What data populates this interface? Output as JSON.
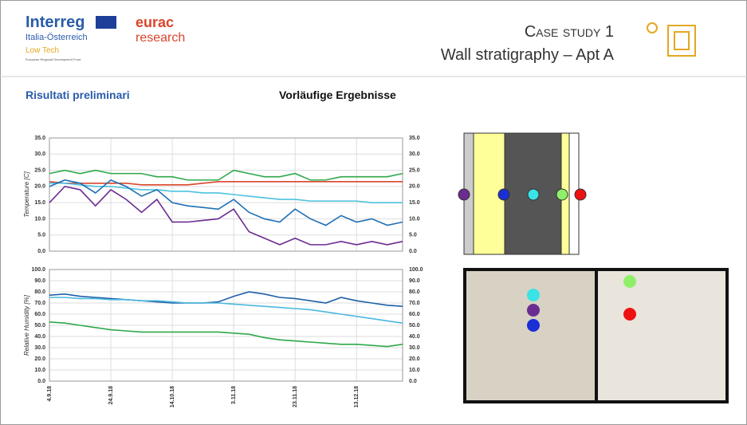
{
  "header": {
    "logo_main": "Interreg",
    "logo_region": "Italia-Österreich",
    "logo_sub": "Low Tech",
    "logo_fund": "European Regional Development Fund",
    "eurac_1": "eurac",
    "eurac_2": "research",
    "title_1": "Case study 1",
    "title_2": "Wall stratigraphy – Apt A"
  },
  "section": {
    "left": "Risultati preliminari",
    "center": "Vorläufige Ergebnisse"
  },
  "chart_data": [
    {
      "type": "line",
      "y_label": "Temperature [C]",
      "x": [
        "2018-09-04",
        "2018-09-09",
        "2018-09-14",
        "2018-09-19",
        "2018-09-24",
        "2018-09-29",
        "2018-10-04",
        "2018-10-09",
        "2018-10-14",
        "2018-10-19",
        "2018-10-24",
        "2018-10-29",
        "2018-11-03",
        "2018-11-08",
        "2018-11-13",
        "2018-11-18",
        "2018-11-23",
        "2018-11-28",
        "2018-12-03",
        "2018-12-08",
        "2018-12-13",
        "2018-12-18",
        "2018-12-23",
        "2018-12-28"
      ],
      "xlim": [
        "2018-09-04",
        "2018-12-28"
      ],
      "xticks": [
        {
          "value": "2018-09-04",
          "label": "4.9.18"
        },
        {
          "value": "2018-09-24",
          "label": "24.9.18"
        },
        {
          "value": "2018-10-14",
          "label": "14.10.18"
        },
        {
          "value": "2018-11-03",
          "label": "3.11.18"
        },
        {
          "value": "2018-11-23",
          "label": "23.11.18"
        },
        {
          "value": "2018-12-13",
          "label": "13.12.18"
        }
      ],
      "ylim": [
        0,
        35
      ],
      "yticks": [
        {
          "value": 0,
          "label": "0.0"
        },
        {
          "value": 5,
          "label": "5.0"
        },
        {
          "value": 10,
          "label": "10.0"
        },
        {
          "value": 15,
          "label": "15.0"
        },
        {
          "value": 20,
          "label": "20.0"
        },
        {
          "value": 25,
          "label": "25.0"
        },
        {
          "value": 30,
          "label": "30.0"
        },
        {
          "value": 35,
          "label": "35.0"
        }
      ],
      "y2lim": [
        0,
        35
      ],
      "y2ticks": [
        {
          "value": 0,
          "label": "0.0"
        },
        {
          "value": 5,
          "label": "5.0"
        },
        {
          "value": 10,
          "label": "10.0"
        },
        {
          "value": 15,
          "label": "15.0"
        },
        {
          "value": 20,
          "label": "20.0"
        },
        {
          "value": 25,
          "label": "25.0"
        },
        {
          "value": 30,
          "label": "30.0"
        },
        {
          "value": 35,
          "label": "35.0"
        }
      ],
      "grid": true,
      "series": [
        {
          "color": "#d9452b",
          "values": [
            21.5,
            21,
            21,
            21,
            21,
            21,
            20.5,
            20.5,
            20.5,
            20.5,
            21,
            21.5,
            21.5,
            21.5,
            21.5,
            21.5,
            21.5,
            21.5,
            21.5,
            21.5,
            21.5,
            21.5,
            21.5,
            21.5
          ]
        },
        {
          "color": "#2ea84a",
          "values": [
            24,
            25,
            24,
            25,
            24,
            24,
            24,
            23,
            23,
            22,
            22,
            22,
            25,
            24,
            23,
            23,
            24,
            22,
            22,
            23,
            23,
            23,
            23,
            24
          ]
        },
        {
          "color": "#4cc3df",
          "values": [
            21,
            21,
            20.5,
            20,
            20,
            19.5,
            19,
            19,
            18.5,
            18.5,
            18,
            18,
            17.5,
            17,
            16.5,
            16,
            16,
            15.5,
            15.5,
            15.5,
            15.5,
            15,
            15,
            15
          ]
        },
        {
          "color": "#1f6fb5",
          "values": [
            20,
            22,
            21,
            18,
            22,
            20,
            17,
            19,
            15,
            14,
            13.5,
            13,
            16,
            12,
            10,
            9,
            13,
            10,
            8,
            11,
            9,
            10,
            8,
            9
          ]
        },
        {
          "color": "#6b2c91",
          "values": [
            15,
            20,
            19,
            14,
            19,
            16,
            12,
            16,
            9,
            9,
            9.5,
            10,
            13,
            6,
            4,
            2,
            4,
            2,
            2,
            3,
            2,
            3,
            2,
            3
          ]
        }
      ]
    },
    {
      "type": "line",
      "y_label": "Relative Humidity [%]",
      "x": [
        "2018-09-04",
        "2018-09-09",
        "2018-09-14",
        "2018-09-19",
        "2018-09-24",
        "2018-09-29",
        "2018-10-04",
        "2018-10-09",
        "2018-10-14",
        "2018-10-19",
        "2018-10-24",
        "2018-10-29",
        "2018-11-03",
        "2018-11-08",
        "2018-11-13",
        "2018-11-18",
        "2018-11-23",
        "2018-11-28",
        "2018-12-03",
        "2018-12-08",
        "2018-12-13",
        "2018-12-18",
        "2018-12-23",
        "2018-12-28"
      ],
      "xlim": [
        "2018-09-04",
        "2018-12-28"
      ],
      "xticks": [
        {
          "value": "2018-09-04",
          "label": "4.9.18"
        },
        {
          "value": "2018-09-24",
          "label": "24.9.18"
        },
        {
          "value": "2018-10-14",
          "label": "14.10.18"
        },
        {
          "value": "2018-11-03",
          "label": "3.11.18"
        },
        {
          "value": "2018-11-23",
          "label": "23.11.18"
        },
        {
          "value": "2018-12-13",
          "label": "13.12.18"
        }
      ],
      "ylim": [
        0,
        100
      ],
      "yticks": [
        {
          "value": 0,
          "label": "0.0"
        },
        {
          "value": 10,
          "label": "10.0"
        },
        {
          "value": 20,
          "label": "20.0"
        },
        {
          "value": 30,
          "label": "30.0"
        },
        {
          "value": 40,
          "label": "40.0"
        },
        {
          "value": 50,
          "label": "50.0"
        },
        {
          "value": 60,
          "label": "60.0"
        },
        {
          "value": 70,
          "label": "70.0"
        },
        {
          "value": 80,
          "label": "80.0"
        },
        {
          "value": 90,
          "label": "90.0"
        },
        {
          "value": 100,
          "label": "100.0"
        }
      ],
      "y2lim": [
        0,
        100
      ],
      "y2ticks": [
        {
          "value": 0,
          "label": "0.0"
        },
        {
          "value": 10,
          "label": "10.0"
        },
        {
          "value": 20,
          "label": "20.0"
        },
        {
          "value": 30,
          "label": "30.0"
        },
        {
          "value": 40,
          "label": "40.0"
        },
        {
          "value": 50,
          "label": "50.0"
        },
        {
          "value": 60,
          "label": "60.0"
        },
        {
          "value": 70,
          "label": "70.0"
        },
        {
          "value": 80,
          "label": "80.0"
        },
        {
          "value": 90,
          "label": "90.0"
        },
        {
          "value": 100,
          "label": "100.0"
        }
      ],
      "grid": true,
      "series": [
        {
          "color": "#1f5fa8",
          "values": [
            77,
            78,
            76,
            75,
            74,
            73,
            72,
            71,
            70,
            70,
            70,
            71,
            76,
            80,
            78,
            75,
            74,
            72,
            70,
            75,
            72,
            70,
            68,
            67
          ]
        },
        {
          "color": "#4cb8df",
          "values": [
            75,
            75,
            74,
            74,
            73,
            73,
            72,
            72,
            71,
            70,
            70,
            70,
            69,
            68,
            67,
            66,
            65,
            64,
            62,
            60,
            58,
            56,
            54,
            52
          ]
        },
        {
          "color": "#2ea84a",
          "values": [
            53,
            52,
            50,
            48,
            46,
            45,
            44,
            44,
            44,
            44,
            44,
            44,
            43,
            42,
            39,
            37,
            36,
            35,
            34,
            33,
            33,
            32,
            31,
            33
          ]
        }
      ]
    }
  ]
}
